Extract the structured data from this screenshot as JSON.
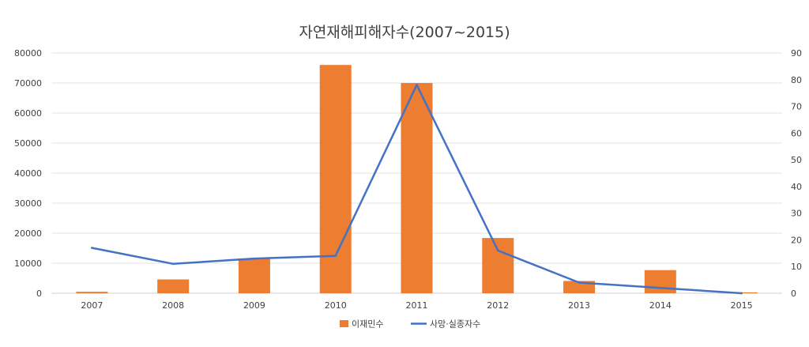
{
  "chart_data": {
    "type": "bar",
    "title": "자연재해피해자수(2007~2015)",
    "categories": [
      "2007",
      "2008",
      "2009",
      "2010",
      "2011",
      "2012",
      "2013",
      "2014",
      "2015"
    ],
    "series": [
      {
        "name": "이재민수",
        "type": "bar",
        "axis": "left",
        "color": "#ED7D31",
        "values": [
          500,
          4600,
          11600,
          76000,
          70000,
          18400,
          4100,
          7700,
          300
        ]
      },
      {
        "name": "사망·실종자수",
        "type": "line",
        "axis": "right",
        "color": "#4472C4",
        "values": [
          17,
          11,
          13,
          14,
          78,
          16,
          4,
          2,
          0
        ]
      }
    ],
    "y_left": {
      "min": 0,
      "max": 80000,
      "step": 10000,
      "ticks": [
        "0",
        "10000",
        "20000",
        "30000",
        "40000",
        "50000",
        "60000",
        "70000",
        "80000"
      ]
    },
    "y_right": {
      "min": 0,
      "max": 90,
      "step": 10,
      "ticks": [
        "0",
        "10",
        "20",
        "30",
        "40",
        "50",
        "60",
        "70",
        "80",
        "90"
      ]
    },
    "grid": true,
    "legend": "bottom"
  }
}
